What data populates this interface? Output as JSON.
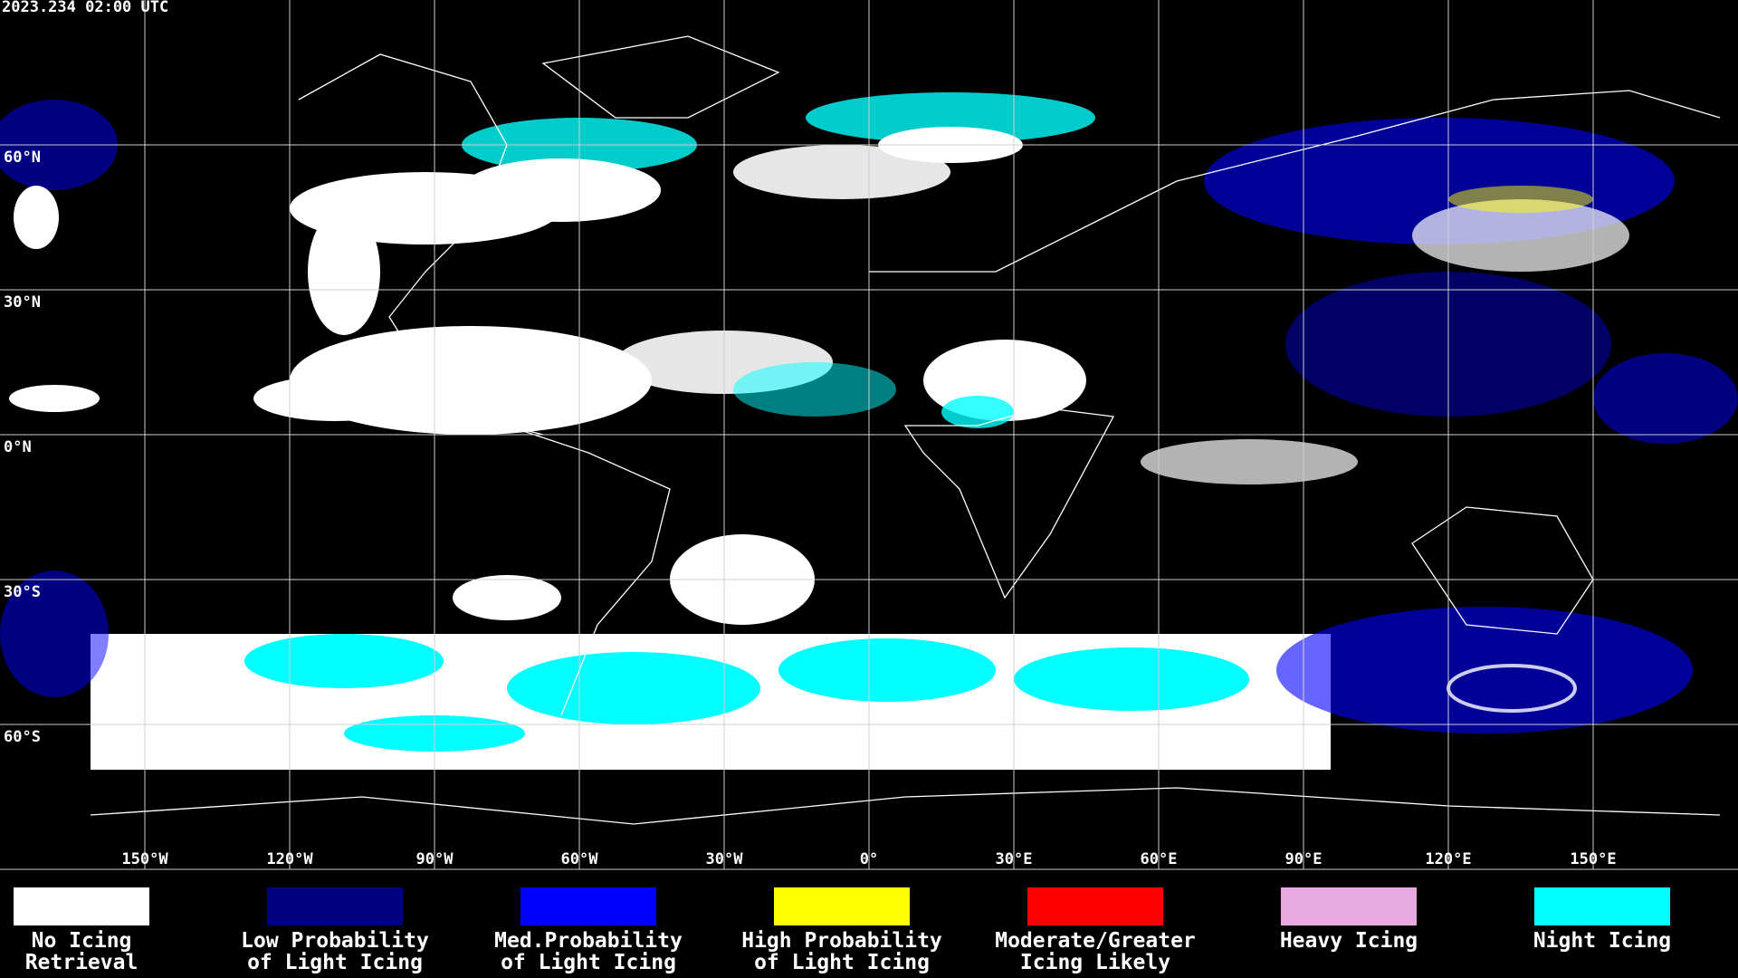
{
  "header": {
    "timestamp": "2023.234 02:00 UTC"
  },
  "map": {
    "lon_ticks": [
      {
        "value": -150,
        "label": "150°W"
      },
      {
        "value": -120,
        "label": "120°W"
      },
      {
        "value": -90,
        "label": "90°W"
      },
      {
        "value": -60,
        "label": "60°W"
      },
      {
        "value": -30,
        "label": "30°W"
      },
      {
        "value": 0,
        "label": "0°"
      },
      {
        "value": 30,
        "label": "30°E"
      },
      {
        "value": 60,
        "label": "60°E"
      },
      {
        "value": 90,
        "label": "90°E"
      },
      {
        "value": 120,
        "label": "120°E"
      },
      {
        "value": 150,
        "label": "150°E"
      }
    ],
    "lat_ticks": [
      {
        "value": 60,
        "label": "60°N"
      },
      {
        "value": 30,
        "label": "30°N"
      },
      {
        "value": 0,
        "label": "0°N"
      },
      {
        "value": -30,
        "label": "30°S"
      },
      {
        "value": -60,
        "label": "60°S"
      }
    ]
  },
  "legend": [
    {
      "label_lines": [
        "No Icing",
        "Retrieval"
      ],
      "color": "#ffffff"
    },
    {
      "label_lines": [
        "Low Probability",
        "of Light Icing"
      ],
      "color": "#000080"
    },
    {
      "label_lines": [
        "Med.Probability",
        "of Light Icing"
      ],
      "color": "#0000ff"
    },
    {
      "label_lines": [
        "High Probability",
        "of Light Icing"
      ],
      "color": "#ffff00"
    },
    {
      "label_lines": [
        "Moderate/Greater",
        "Icing Likely"
      ],
      "color": "#ff0000"
    },
    {
      "label_lines": [
        "Heavy Icing"
      ],
      "color": "#e8a8e0"
    },
    {
      "label_lines": [
        "Night Icing"
      ],
      "color": "#00ffff"
    }
  ]
}
